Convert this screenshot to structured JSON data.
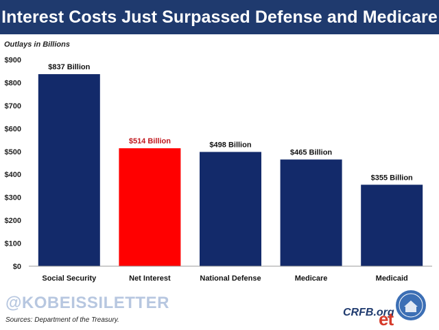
{
  "header": {
    "title": "Interest Costs Just Surpassed Defense and Medicare",
    "subtitle": "Outlays in Billions"
  },
  "footer": {
    "watermark": "@KOBEISSILETTER",
    "sources": "Sources: Department of the Treasury.",
    "site": "CRFB.org",
    "logo_text": "et"
  },
  "colors": {
    "title_bar": "#1f3a6e",
    "bar_default": "#132a6a",
    "bar_highlight": "#ff0000",
    "label_default": "#111111",
    "label_highlight": "#c0171d"
  },
  "chart_data": {
    "type": "bar",
    "categories": [
      "Social Security",
      "Net Interest",
      "National Defense",
      "Medicare",
      "Medicaid"
    ],
    "values": [
      837,
      514,
      498,
      465,
      355
    ],
    "data_labels": [
      "$837 Billion",
      "$514 Billion",
      "$498 Billion",
      "$465 Billion",
      "$355 Billion"
    ],
    "highlight_index": 1,
    "ylabel": "Outlays in Billions",
    "ylim": [
      0,
      900
    ],
    "yticks": [
      0,
      100,
      200,
      300,
      400,
      500,
      600,
      700,
      800,
      900
    ],
    "ytick_labels": [
      "$0",
      "$100",
      "$200",
      "$300",
      "$400",
      "$500",
      "$600",
      "$700",
      "$800",
      "$900"
    ],
    "grid": false,
    "legend": "none"
  }
}
